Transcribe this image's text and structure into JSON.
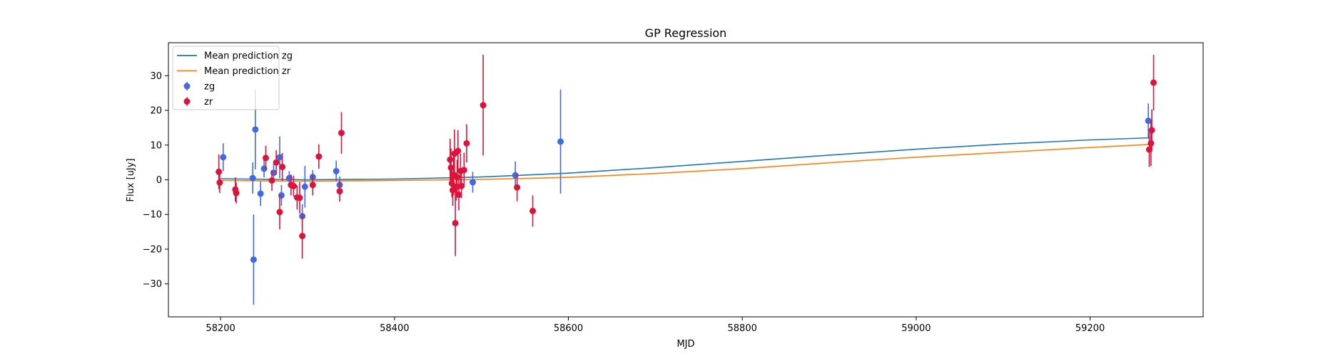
{
  "chart_data": {
    "type": "scatter",
    "title": "GP Regression",
    "xlabel": "MJD",
    "ylabel": "Flux [uJy]",
    "xlim": [
      58140,
      59330
    ],
    "ylim": [
      -39.5,
      39.5
    ],
    "xticks": [
      58200,
      58400,
      58600,
      58800,
      59000,
      59200
    ],
    "yticks": [
      -30,
      -20,
      -10,
      0,
      10,
      20,
      30
    ],
    "grid": false,
    "legend_position": "top-left",
    "series": [
      {
        "name": "Mean prediction zg",
        "kind": "line",
        "color": "#1f77b4",
        "points": [
          [
            58200,
            0.3
          ],
          [
            58300,
            0.0
          ],
          [
            58400,
            0.2
          ],
          [
            58500,
            0.8
          ],
          [
            58600,
            1.9
          ],
          [
            58700,
            3.5
          ],
          [
            58800,
            5.3
          ],
          [
            58900,
            7.1
          ],
          [
            59000,
            8.8
          ],
          [
            59100,
            10.3
          ],
          [
            59200,
            11.5
          ],
          [
            59270,
            12.1
          ]
        ]
      },
      {
        "name": "Mean prediction zr",
        "kind": "line",
        "color": "#ff7f0e",
        "points": [
          [
            58200,
            -0.2
          ],
          [
            58300,
            -0.4
          ],
          [
            58400,
            -0.2
          ],
          [
            58500,
            0.1
          ],
          [
            58600,
            0.7
          ],
          [
            58700,
            1.8
          ],
          [
            58800,
            3.2
          ],
          [
            58900,
            4.9
          ],
          [
            59000,
            6.5
          ],
          [
            59100,
            7.9
          ],
          [
            59200,
            9.3
          ],
          [
            59270,
            10.2
          ]
        ]
      },
      {
        "name": "zg",
        "kind": "errorbar",
        "color": "#4169e1",
        "points": [
          {
            "x": 58203,
            "y": 6.5,
            "err": 4.0
          },
          {
            "x": 58237,
            "y": 0.5,
            "err": 4.5
          },
          {
            "x": 58238,
            "y": -23.0,
            "err": 13.0
          },
          {
            "x": 58240,
            "y": 14.5,
            "err": 11.5
          },
          {
            "x": 58246,
            "y": -4.0,
            "err": 3.5
          },
          {
            "x": 58250,
            "y": 3.2,
            "err": 2.5
          },
          {
            "x": 58261,
            "y": 2.0,
            "err": 2.5
          },
          {
            "x": 58268,
            "y": 6.5,
            "err": 6.0
          },
          {
            "x": 58270,
            "y": -4.5,
            "err": 3.0
          },
          {
            "x": 58279,
            "y": 0.5,
            "err": 2.0
          },
          {
            "x": 58294,
            "y": -10.5,
            "err": 3.5
          },
          {
            "x": 58297,
            "y": -2.0,
            "err": 6.0
          },
          {
            "x": 58306,
            "y": 0.8,
            "err": 2.0
          },
          {
            "x": 58333,
            "y": 2.5,
            "err": 3.0
          },
          {
            "x": 58337,
            "y": -1.5,
            "err": 2.5
          },
          {
            "x": 58490,
            "y": -0.7,
            "err": 3.0
          },
          {
            "x": 58539,
            "y": 1.3,
            "err": 4.0
          },
          {
            "x": 58591,
            "y": 11.0,
            "err": 15.0
          },
          {
            "x": 59267,
            "y": 17.0,
            "err": 5.0
          }
        ]
      },
      {
        "name": "zr",
        "kind": "errorbar",
        "color": "#dc143c",
        "points": [
          {
            "x": 58198,
            "y": 2.3,
            "err": 5.0
          },
          {
            "x": 58199,
            "y": -0.8,
            "err": 3.0
          },
          {
            "x": 58217,
            "y": -2.8,
            "err": 3.5
          },
          {
            "x": 58218,
            "y": -3.8,
            "err": 3.0
          },
          {
            "x": 58252,
            "y": 6.3,
            "err": 3.5
          },
          {
            "x": 58259,
            "y": -0.2,
            "err": 3.0
          },
          {
            "x": 58264,
            "y": 5.0,
            "err": 3.5
          },
          {
            "x": 58268,
            "y": -9.3,
            "err": 5.0
          },
          {
            "x": 58271,
            "y": 3.7,
            "err": 4.0
          },
          {
            "x": 58281,
            "y": -1.5,
            "err": 3.0
          },
          {
            "x": 58284,
            "y": -1.8,
            "err": 3.0
          },
          {
            "x": 58288,
            "y": -5.1,
            "err": 3.5
          },
          {
            "x": 58291,
            "y": -5.2,
            "err": 4.5
          },
          {
            "x": 58294,
            "y": -16.2,
            "err": 6.5
          },
          {
            "x": 58306,
            "y": -1.5,
            "err": 3.0
          },
          {
            "x": 58313,
            "y": 6.7,
            "err": 3.5
          },
          {
            "x": 58337,
            "y": -3.3,
            "err": 3.0
          },
          {
            "x": 58339,
            "y": 13.5,
            "err": 6.0
          },
          {
            "x": 58464,
            "y": 5.8,
            "err": 6.0
          },
          {
            "x": 58465,
            "y": 3.5,
            "err": 5.5
          },
          {
            "x": 58466,
            "y": -1.0,
            "err": 4.0
          },
          {
            "x": 58467,
            "y": -3.0,
            "err": 4.5
          },
          {
            "x": 58468,
            "y": 1.5,
            "err": 6.0
          },
          {
            "x": 58469,
            "y": 7.5,
            "err": 7.0
          },
          {
            "x": 58470,
            "y": -12.5,
            "err": 9.5
          },
          {
            "x": 58471,
            "y": -2.0,
            "err": 4.0
          },
          {
            "x": 58472,
            "y": 0.8,
            "err": 5.0
          },
          {
            "x": 58473,
            "y": 8.3,
            "err": 6.0
          },
          {
            "x": 58474,
            "y": -4.3,
            "err": 4.5
          },
          {
            "x": 58476,
            "y": 2.5,
            "err": 5.0
          },
          {
            "x": 58477,
            "y": -1.8,
            "err": 3.5
          },
          {
            "x": 58480,
            "y": 2.8,
            "err": 5.0
          },
          {
            "x": 58483,
            "y": 10.5,
            "err": 5.5
          },
          {
            "x": 58502,
            "y": 21.5,
            "err": 14.5
          },
          {
            "x": 58541,
            "y": -2.2,
            "err": 4.0
          },
          {
            "x": 58559,
            "y": -9.0,
            "err": 4.5
          },
          {
            "x": 59268,
            "y": 8.7,
            "err": 5.0
          },
          {
            "x": 59270,
            "y": 10.5,
            "err": 6.5
          },
          {
            "x": 59271,
            "y": 14.3,
            "err": 6.0
          },
          {
            "x": 59273,
            "y": 28.0,
            "err": 8.0
          }
        ]
      }
    ]
  }
}
